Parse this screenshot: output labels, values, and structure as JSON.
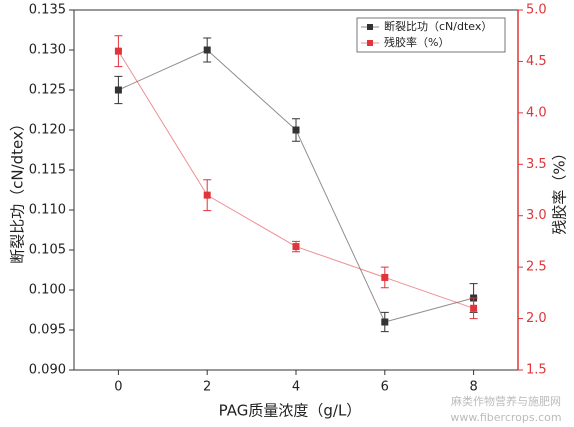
{
  "chart_data": {
    "type": "line",
    "x_label": "PAG质量浓度（g/L）",
    "y_label": "断裂比功（cN/dtex）",
    "y2_label": "残胶率（%）",
    "x": [
      0,
      2,
      4,
      6,
      8
    ],
    "xlim": [
      -1,
      9
    ],
    "xticks": [
      0,
      2,
      4,
      6,
      8
    ],
    "ylim": [
      0.09,
      0.135
    ],
    "yticks": [
      {
        "value": 0.09,
        "label": "0.090"
      },
      0.095,
      {
        "value": 0.1,
        "label": "0.100"
      },
      0.105,
      {
        "value": 0.11,
        "label": "0.110"
      },
      0.115,
      {
        "value": 0.12,
        "label": "0.120"
      },
      0.125,
      {
        "value": 0.13,
        "label": "0.130"
      },
      0.135
    ],
    "y2lim": [
      1.5,
      5.0
    ],
    "y2ticks": [
      1.5,
      {
        "value": 2.0,
        "label": "2.0"
      },
      2.5,
      {
        "value": 3.0,
        "label": "3.0"
      },
      3.5,
      {
        "value": 4.0,
        "label": "4.0"
      },
      4.5,
      {
        "value": 5.0,
        "label": "5.0"
      }
    ],
    "y2_color": "#e0353a",
    "legend": "upper right",
    "series": [
      {
        "name": "断裂比功（cN/dtex）",
        "color": "#333333",
        "values": [
          0.125,
          0.13,
          0.12,
          0.096,
          0.099
        ],
        "errors": [
          0.0017,
          0.0015,
          0.0014,
          0.0012,
          0.0018
        ]
      },
      {
        "name": "残胶率（%）",
        "color": "#e0353a",
        "axis": "y2",
        "values": [
          4.6,
          3.2,
          2.7,
          2.4,
          2.1
        ],
        "errors": [
          0.15,
          0.15,
          0.05,
          0.1,
          0.1
        ]
      }
    ],
    "watermark": [
      "麻类作物营养与施肥网",
      "www.fibercrops.com"
    ]
  }
}
